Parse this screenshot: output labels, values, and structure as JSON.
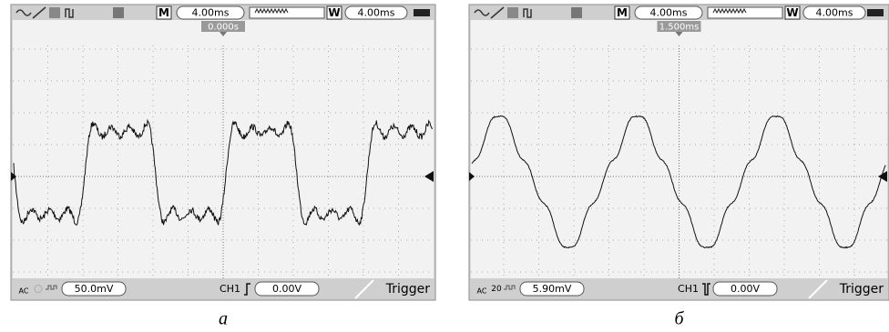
{
  "panels": [
    {
      "caption": "а",
      "top_bar": {
        "mode": "M",
        "timebase": "4.00ms",
        "window": "W",
        "window_time": "4.00ms"
      },
      "trigger_position": "0.000s",
      "bottom_bar": {
        "coupling": "AC",
        "scale": "50.0mV",
        "channel": "CH1",
        "trigger_level": "0.00V",
        "trigger_menu": "Trigger"
      }
    },
    {
      "caption": "б",
      "top_bar": {
        "mode": "M",
        "timebase": "4.00ms",
        "window": "W",
        "window_time": "4.00ms"
      },
      "trigger_position": "1.500ms",
      "bottom_bar": {
        "coupling": "AC",
        "bandwidth": "20",
        "scale": "5.90mV",
        "channel": "CH1",
        "trigger_level": "0.00V",
        "trigger_menu": "Trigger"
      }
    }
  ]
}
